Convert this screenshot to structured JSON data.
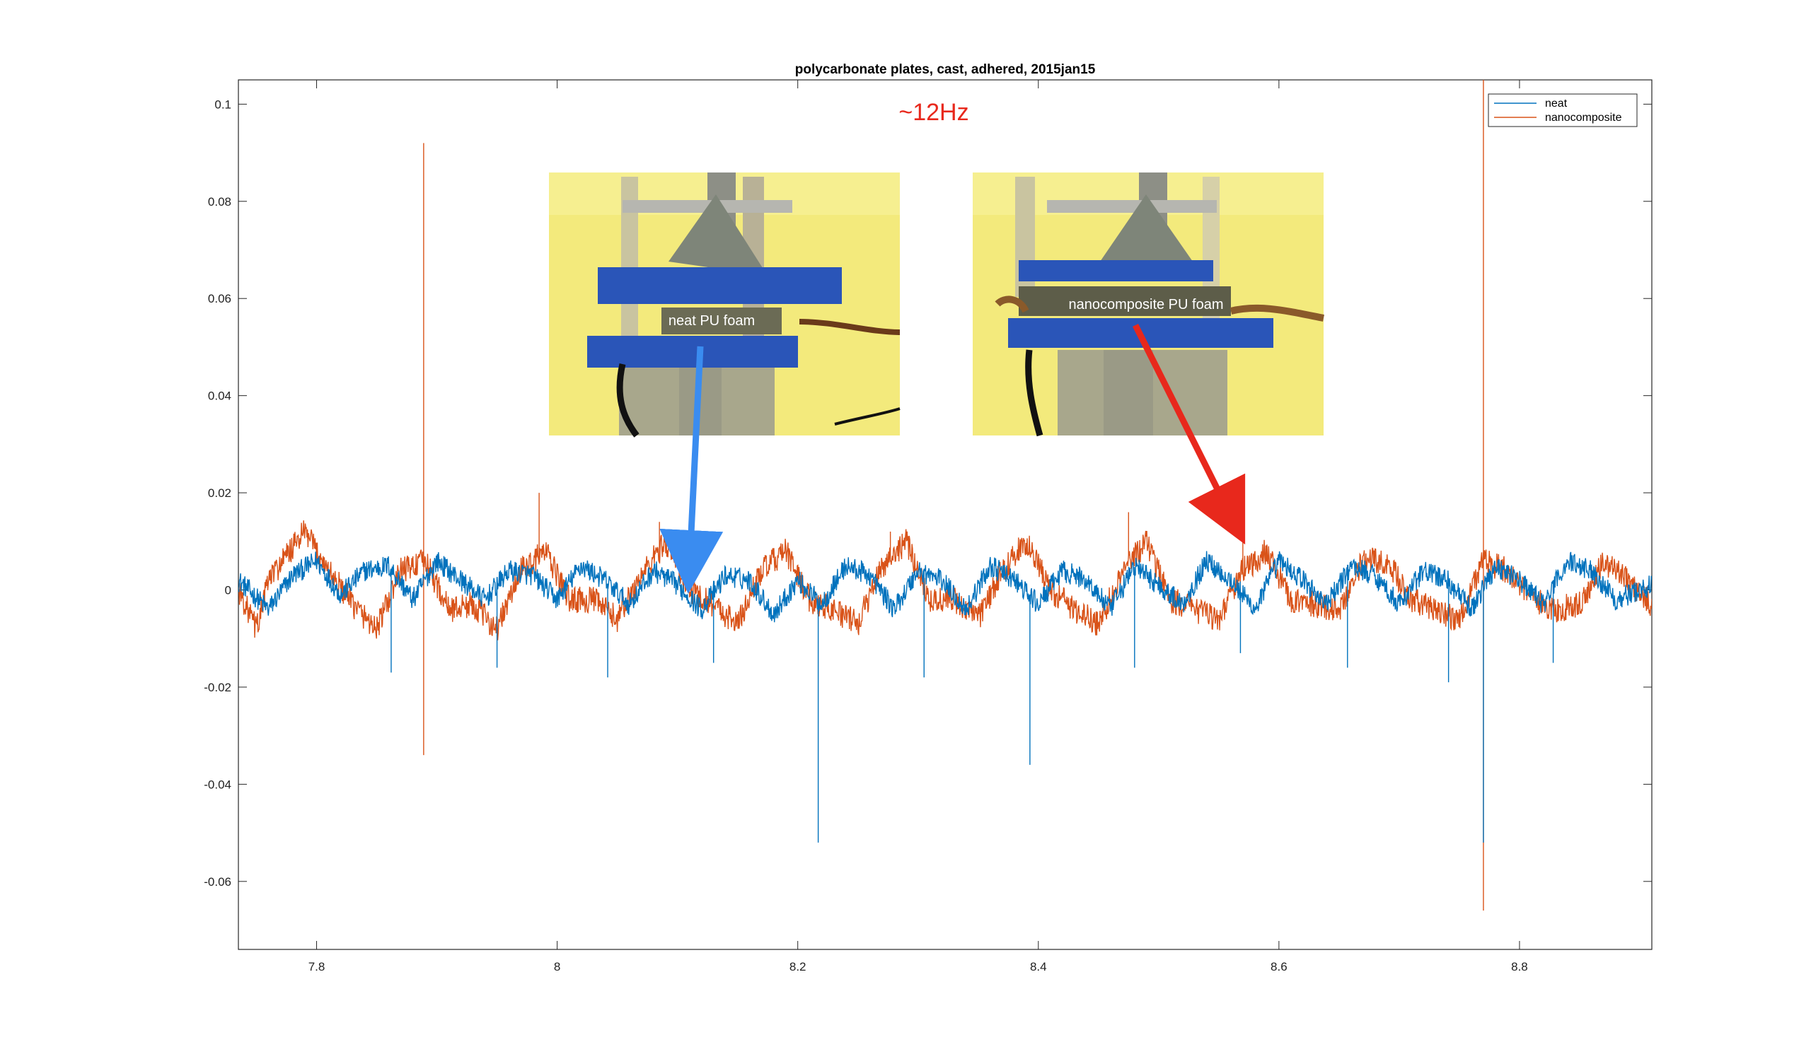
{
  "chart_data": {
    "type": "line",
    "title": "polycarbonate plates, cast, adhered, 2015jan15",
    "xlabel": "",
    "ylabel": "",
    "xlim": [
      7.735,
      8.91
    ],
    "ylim": [
      -0.074,
      0.105
    ],
    "x_ticks": [
      7.8,
      8,
      8.2,
      8.4,
      8.6,
      8.8
    ],
    "x_tick_labels": [
      "7.8",
      "8",
      "8.2",
      "8.4",
      "8.6",
      "8.8"
    ],
    "y_ticks": [
      -0.06,
      -0.04,
      -0.02,
      0,
      0.02,
      0.04,
      0.06,
      0.08,
      0.1
    ],
    "y_tick_labels": [
      "-0.06",
      "-0.04",
      "-0.02",
      "0",
      "0.02",
      "0.04",
      "0.06",
      "0.08",
      "0.1"
    ],
    "grid": false,
    "legend_position": "top-right",
    "annotation_frequency": "~12Hz",
    "photo_labels": [
      "neat PU foam",
      "nanocomposite PU foam"
    ],
    "colors": {
      "neat": "#0072bd",
      "nanocomposite": "#d95319",
      "annotation": "#e8281c",
      "arrow_neat": "#3a8cf0",
      "arrow_nano": "#e8281c"
    },
    "series": [
      {
        "name": "neat",
        "color": "#0072bd",
        "period": 0.0835,
        "baseline_points": [
          [
            7.735,
            0.002
          ],
          [
            7.76,
            -0.004
          ],
          [
            7.78,
            0.003
          ],
          [
            7.8,
            0.006
          ],
          [
            7.82,
            -0.001
          ],
          [
            7.84,
            0.004
          ],
          [
            7.86,
            0.005
          ],
          [
            7.88,
            -0.002
          ],
          [
            7.9,
            0.006
          ],
          [
            7.92,
            0.002
          ],
          [
            7.94,
            -0.002
          ],
          [
            7.96,
            0.004
          ],
          [
            7.98,
            0.003
          ],
          [
            8.0,
            -0.002
          ],
          [
            8.02,
            0.005
          ],
          [
            8.04,
            0.002
          ],
          [
            8.06,
            -0.003
          ],
          [
            8.08,
            0.004
          ],
          [
            8.1,
            0.001
          ],
          [
            8.12,
            -0.004
          ],
          [
            8.14,
            0.003
          ],
          [
            8.16,
            0.002
          ],
          [
            8.18,
            -0.005
          ],
          [
            8.2,
            0.002
          ],
          [
            8.22,
            -0.003
          ],
          [
            8.24,
            0.005
          ],
          [
            8.26,
            0.003
          ],
          [
            8.28,
            -0.004
          ],
          [
            8.3,
            0.004
          ],
          [
            8.32,
            0.002
          ],
          [
            8.34,
            -0.004
          ],
          [
            8.36,
            0.005
          ],
          [
            8.38,
            0.002
          ],
          [
            8.4,
            -0.003
          ],
          [
            8.42,
            0.004
          ],
          [
            8.44,
            0.002
          ],
          [
            8.46,
            -0.004
          ],
          [
            8.48,
            0.005
          ],
          [
            8.5,
            0.001
          ],
          [
            8.52,
            -0.003
          ],
          [
            8.54,
            0.006
          ],
          [
            8.56,
            0.002
          ],
          [
            8.58,
            -0.004
          ],
          [
            8.6,
            0.006
          ],
          [
            8.62,
            0.002
          ],
          [
            8.64,
            -0.003
          ],
          [
            8.66,
            0.005
          ],
          [
            8.68,
            0.003
          ],
          [
            8.7,
            -0.003
          ],
          [
            8.72,
            0.004
          ],
          [
            8.74,
            0.002
          ],
          [
            8.76,
            -0.004
          ],
          [
            8.78,
            0.005
          ],
          [
            8.8,
            0.002
          ],
          [
            8.82,
            -0.003
          ],
          [
            8.84,
            0.006
          ],
          [
            8.86,
            0.004
          ],
          [
            8.88,
            -0.002
          ],
          [
            8.91,
            0.001
          ]
        ],
        "spikes": [
          [
            7.862,
            -0.017
          ],
          [
            7.95,
            -0.016
          ],
          [
            8.042,
            -0.018
          ],
          [
            8.13,
            -0.015
          ],
          [
            8.217,
            -0.052
          ],
          [
            8.305,
            -0.018
          ],
          [
            8.393,
            -0.036
          ],
          [
            8.48,
            -0.016
          ],
          [
            8.568,
            -0.013
          ],
          [
            8.657,
            -0.016
          ],
          [
            8.741,
            -0.019
          ],
          [
            8.77,
            -0.052
          ],
          [
            8.828,
            -0.015
          ]
        ]
      },
      {
        "name": "nanocomposite",
        "color": "#d95319",
        "period": 0.0835,
        "baseline_points": [
          [
            7.735,
            0.0
          ],
          [
            7.75,
            -0.008
          ],
          [
            7.76,
            0.002
          ],
          [
            7.79,
            0.012
          ],
          [
            7.81,
            0.004
          ],
          [
            7.83,
            -0.003
          ],
          [
            7.85,
            -0.008
          ],
          [
            7.87,
            0.004
          ],
          [
            7.89,
            0.006
          ],
          [
            7.91,
            -0.004
          ],
          [
            7.93,
            -0.003
          ],
          [
            7.95,
            -0.008
          ],
          [
            7.97,
            0.004
          ],
          [
            7.99,
            0.008
          ],
          [
            8.01,
            -0.002
          ],
          [
            8.03,
            -0.002
          ],
          [
            8.05,
            -0.006
          ],
          [
            8.07,
            0.003
          ],
          [
            8.09,
            0.01
          ],
          [
            8.11,
            0.0
          ],
          [
            8.13,
            -0.003
          ],
          [
            8.15,
            -0.007
          ],
          [
            8.17,
            0.004
          ],
          [
            8.19,
            0.008
          ],
          [
            8.21,
            -0.002
          ],
          [
            8.23,
            -0.004
          ],
          [
            8.25,
            -0.007
          ],
          [
            8.27,
            0.005
          ],
          [
            8.29,
            0.01
          ],
          [
            8.31,
            -0.002
          ],
          [
            8.33,
            -0.002
          ],
          [
            8.35,
            -0.006
          ],
          [
            8.37,
            0.004
          ],
          [
            8.39,
            0.01
          ],
          [
            8.41,
            0.0
          ],
          [
            8.43,
            -0.004
          ],
          [
            8.45,
            -0.007
          ],
          [
            8.47,
            0.004
          ],
          [
            8.49,
            0.01
          ],
          [
            8.51,
            -0.002
          ],
          [
            8.53,
            -0.004
          ],
          [
            8.55,
            -0.006
          ],
          [
            8.57,
            0.004
          ],
          [
            8.59,
            0.008
          ],
          [
            8.61,
            -0.002
          ],
          [
            8.63,
            -0.003
          ],
          [
            8.65,
            -0.004
          ],
          [
            8.67,
            0.006
          ],
          [
            8.69,
            0.006
          ],
          [
            8.71,
            -0.002
          ],
          [
            8.73,
            -0.004
          ],
          [
            8.75,
            -0.006
          ],
          [
            8.77,
            0.006
          ],
          [
            8.79,
            0.004
          ],
          [
            8.81,
            -0.002
          ],
          [
            8.83,
            -0.004
          ],
          [
            8.85,
            -0.003
          ],
          [
            8.87,
            0.006
          ],
          [
            8.89,
            0.002
          ],
          [
            8.91,
            -0.003
          ]
        ],
        "spikes": [
          [
            7.889,
            0.092
          ],
          [
            7.889,
            -0.034
          ],
          [
            7.985,
            0.02
          ],
          [
            8.085,
            0.014
          ],
          [
            8.277,
            0.012
          ],
          [
            8.475,
            0.016
          ],
          [
            8.57,
            0.014
          ],
          [
            8.77,
            0.105
          ],
          [
            8.77,
            -0.066
          ]
        ]
      }
    ]
  }
}
